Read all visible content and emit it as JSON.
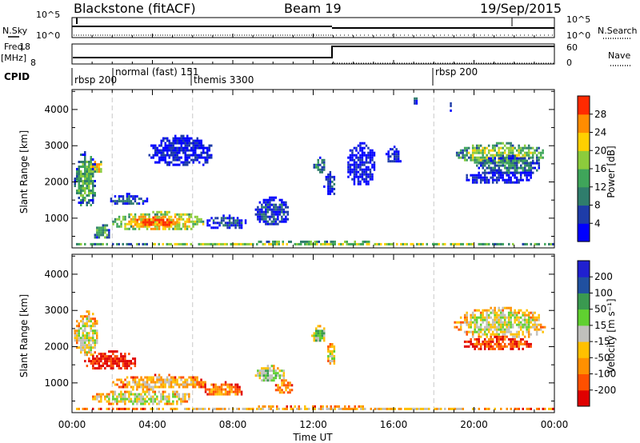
{
  "header": {
    "station": "Blackstone (fitACF)",
    "beam": "Beam 19",
    "date": "19/Sep/2015"
  },
  "panels": {
    "nsky": {
      "left_label": "N.Sky",
      "left_ticks": [
        "10^5",
        "10^0"
      ],
      "right_ticks": [
        "10^5",
        "10^0"
      ],
      "right_label": "N.Search"
    },
    "freq": {
      "left_label_1": "Freq.",
      "left_label_2": "[MHz]",
      "left_ticks": [
        "18",
        "8"
      ],
      "right_ticks": [
        "60",
        "0"
      ],
      "right_label": "Nave"
    },
    "cpid": {
      "label": "CPID",
      "modes": [
        "rbsp 200",
        "normal (fast) 151",
        "themis 3300",
        "rbsp 200"
      ]
    }
  },
  "time_axis": {
    "label": "Time UT",
    "ticks": [
      "00:00",
      "04:00",
      "08:00",
      "12:00",
      "16:00",
      "20:00",
      "00:00"
    ]
  },
  "chart_data": [
    {
      "type": "heatmap",
      "panel": "power",
      "ylabel": "Slant Range [km]",
      "yticks": [
        1000,
        2000,
        3000,
        4000
      ],
      "ylim": [
        180,
        4550
      ],
      "xlim_hours": [
        0,
        24
      ],
      "colorbar": {
        "label": "Power [dB]",
        "ticks": [
          "28",
          "24",
          "20",
          "16",
          "12",
          "8",
          "4"
        ],
        "colors": [
          "#0000ff",
          "#1e3ca8",
          "#2f7d6c",
          "#3fa55a",
          "#8ccc3c",
          "#ffd000",
          "#ff8c00",
          "#ff2a00"
        ]
      },
      "regions": [
        {
          "t": [
            0.1,
            1.2
          ],
          "r": [
            1300,
            2850
          ],
          "level": 3
        },
        {
          "t": [
            0.7,
            1.5
          ],
          "r": [
            2200,
            2650
          ],
          "level": 5
        },
        {
          "t": [
            1.0,
            1.9
          ],
          "r": [
            380,
            900
          ],
          "level": 3
        },
        {
          "t": [
            2.0,
            6.6
          ],
          "r": [
            650,
            1200
          ],
          "level": 5
        },
        {
          "t": [
            3.0,
            5.4
          ],
          "r": [
            750,
            1050
          ],
          "level": 7
        },
        {
          "t": [
            1.8,
            3.8
          ],
          "r": [
            1350,
            1700
          ],
          "level": 1
        },
        {
          "t": [
            3.8,
            7.0
          ],
          "r": [
            2400,
            3300
          ],
          "level": 0
        },
        {
          "t": [
            6.6,
            8.7
          ],
          "r": [
            700,
            1100
          ],
          "level": 1
        },
        {
          "t": [
            9.1,
            10.8
          ],
          "r": [
            800,
            1600
          ],
          "level": 1
        },
        {
          "t": [
            12.0,
            12.6
          ],
          "r": [
            2200,
            2700
          ],
          "level": 2
        },
        {
          "t": [
            12.5,
            13.1
          ],
          "r": [
            1600,
            2300
          ],
          "level": 1
        },
        {
          "t": [
            13.6,
            15.1
          ],
          "r": [
            1900,
            3100
          ],
          "level": 0
        },
        {
          "t": [
            15.6,
            16.4
          ],
          "r": [
            2500,
            3000
          ],
          "level": 0
        },
        {
          "t": [
            19.1,
            23.5
          ],
          "r": [
            2500,
            3100
          ],
          "level": 4
        },
        {
          "t": [
            20.1,
            23.3
          ],
          "r": [
            2200,
            2750
          ],
          "level": 2
        },
        {
          "t": [
            19.5,
            22.9
          ],
          "r": [
            1950,
            2350
          ],
          "level": 0
        },
        {
          "t": [
            18.7,
            18.9
          ],
          "r": [
            3900,
            4200
          ],
          "level": 1
        },
        {
          "t": [
            16.9,
            17.2
          ],
          "r": [
            4050,
            4400
          ],
          "level": 1
        },
        {
          "t": [
            0.0,
            24.0
          ],
          "r": [
            200,
            380
          ],
          "level": 4
        }
      ]
    },
    {
      "type": "heatmap",
      "panel": "velocity",
      "ylabel": "Slant Range [km]",
      "yticks": [
        1000,
        2000,
        3000,
        4000
      ],
      "ylim": [
        180,
        4550
      ],
      "xlim_hours": [
        0,
        24
      ],
      "colorbar": {
        "label": "Velocity [m s⁻¹]",
        "ticks": [
          "200",
          "100",
          "50",
          "15",
          "-15",
          "-50",
          "-100",
          "-200"
        ],
        "colors": [
          "#e00000",
          "#ff5000",
          "#ff9000",
          "#ffc000",
          "#c0c0bc",
          "#60d030",
          "#3a9a50",
          "#2050a0",
          "#2020d0"
        ]
      },
      "regions": [
        {
          "t": [
            0.1,
            1.3
          ],
          "r": [
            1700,
            3000
          ],
          "level": 4
        },
        {
          "t": [
            0.6,
            3.2
          ],
          "r": [
            1350,
            1900
          ],
          "level": 0
        },
        {
          "t": [
            2.0,
            6.8
          ],
          "r": [
            800,
            1250
          ],
          "level": 3
        },
        {
          "t": [
            1.0,
            6.0
          ],
          "r": [
            380,
            850
          ],
          "level": 4
        },
        {
          "t": [
            6.6,
            8.5
          ],
          "r": [
            600,
            1050
          ],
          "level": 2
        },
        {
          "t": [
            9.1,
            10.6
          ],
          "r": [
            1000,
            1500
          ],
          "level": 5
        },
        {
          "t": [
            10.0,
            11.0
          ],
          "r": [
            700,
            1100
          ],
          "level": 2
        },
        {
          "t": [
            11.9,
            12.6
          ],
          "r": [
            2100,
            2600
          ],
          "level": 5
        },
        {
          "t": [
            12.6,
            13.1
          ],
          "r": [
            1500,
            2100
          ],
          "level": 4
        },
        {
          "t": [
            19.0,
            23.6
          ],
          "r": [
            2200,
            3100
          ],
          "level": 4
        },
        {
          "t": [
            19.4,
            22.9
          ],
          "r": [
            1900,
            2300
          ],
          "level": 1
        },
        {
          "t": [
            0.0,
            24.0
          ],
          "r": [
            200,
            380
          ],
          "level": 3
        }
      ]
    }
  ]
}
